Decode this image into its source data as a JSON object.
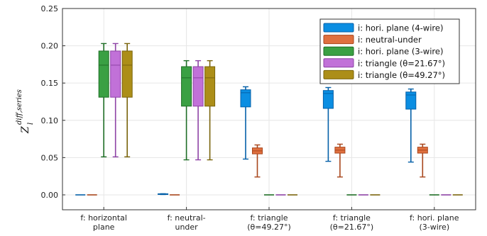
{
  "chart_data": {
    "type": "box",
    "ylabel": {
      "main": "Z",
      "sup": "diff,series",
      "sub": "l"
    },
    "ylim": [
      -0.02,
      0.25
    ],
    "yticks": [
      "0.00",
      "0.05",
      "0.10",
      "0.15",
      "0.20",
      "0.25"
    ],
    "grid": true,
    "legend_position": "top-right",
    "categories": [
      [
        "f: horizontal",
        "plane"
      ],
      [
        "f: neutral-",
        "under"
      ],
      [
        "f: triangle",
        "(θ=49.27°)"
      ],
      [
        "f: triangle",
        "(θ=21.67°)"
      ],
      [
        "f: hori. plane",
        "(3-wire)"
      ]
    ],
    "series": [
      {
        "name": "i: hori. plane (4-wire)",
        "color": "#0b8ee2",
        "stroke": "#0560a8",
        "boxes": [
          {
            "min": 0.0,
            "q1": 0.0,
            "median": 0.0,
            "q3": 0.0,
            "max": 0.0
          },
          {
            "min": 0.0005,
            "q1": 0.0005,
            "median": 0.001,
            "q3": 0.0015,
            "max": 0.0015
          },
          {
            "min": 0.048,
            "q1": 0.118,
            "median": 0.137,
            "q3": 0.141,
            "max": 0.145
          },
          {
            "min": 0.045,
            "q1": 0.116,
            "median": 0.136,
            "q3": 0.14,
            "max": 0.144
          },
          {
            "min": 0.044,
            "q1": 0.115,
            "median": 0.134,
            "q3": 0.138,
            "max": 0.142
          }
        ]
      },
      {
        "name": "i: neutral-under",
        "color": "#e0703f",
        "stroke": "#a8461c",
        "boxes": [
          {
            "min": 0.0,
            "q1": 0.0,
            "median": 0.0,
            "q3": 0.0,
            "max": 0.0
          },
          {
            "min": 0.0,
            "q1": 0.0,
            "median": 0.0,
            "q3": 0.0,
            "max": 0.0
          },
          {
            "min": 0.024,
            "q1": 0.055,
            "median": 0.059,
            "q3": 0.063,
            "max": 0.067
          },
          {
            "min": 0.024,
            "q1": 0.056,
            "median": 0.06,
            "q3": 0.064,
            "max": 0.068
          },
          {
            "min": 0.024,
            "q1": 0.056,
            "median": 0.06,
            "q3": 0.064,
            "max": 0.068
          }
        ]
      },
      {
        "name": "i: hori. plane (3-wire)",
        "color": "#3aa043",
        "stroke": "#1f6e26",
        "boxes": [
          {
            "min": 0.051,
            "q1": 0.131,
            "median": 0.174,
            "q3": 0.193,
            "max": 0.203
          },
          {
            "min": 0.047,
            "q1": 0.119,
            "median": 0.157,
            "q3": 0.172,
            "max": 0.18
          },
          {
            "min": 0.0,
            "q1": 0.0,
            "median": 0.0,
            "q3": 0.0,
            "max": 0.0
          },
          {
            "min": 0.0,
            "q1": 0.0,
            "median": 0.0,
            "q3": 0.0,
            "max": 0.0
          },
          {
            "min": 0.0,
            "q1": 0.0,
            "median": 0.0,
            "q3": 0.0,
            "max": 0.0
          }
        ]
      },
      {
        "name": "i: triangle (θ=21.67°)",
        "color": "#c171d8",
        "stroke": "#8e43a6",
        "boxes": [
          {
            "min": 0.051,
            "q1": 0.131,
            "median": 0.174,
            "q3": 0.193,
            "max": 0.203
          },
          {
            "min": 0.047,
            "q1": 0.119,
            "median": 0.157,
            "q3": 0.172,
            "max": 0.18
          },
          {
            "min": 0.0,
            "q1": 0.0,
            "median": 0.0,
            "q3": 0.0,
            "max": 0.0
          },
          {
            "min": 0.0,
            "q1": 0.0,
            "median": 0.0,
            "q3": 0.0,
            "max": 0.0
          },
          {
            "min": 0.0,
            "q1": 0.0,
            "median": 0.0,
            "q3": 0.0,
            "max": 0.0
          }
        ]
      },
      {
        "name": "i: triangle (θ=49.27°)",
        "color": "#ac8e18",
        "stroke": "#7a640c",
        "boxes": [
          {
            "min": 0.051,
            "q1": 0.131,
            "median": 0.174,
            "q3": 0.193,
            "max": 0.203
          },
          {
            "min": 0.047,
            "q1": 0.119,
            "median": 0.157,
            "q3": 0.172,
            "max": 0.18
          },
          {
            "min": 0.0,
            "q1": 0.0,
            "median": 0.0,
            "q3": 0.0,
            "max": 0.0
          },
          {
            "min": 0.0,
            "q1": 0.0,
            "median": 0.0,
            "q3": 0.0,
            "max": 0.0
          },
          {
            "min": 0.0,
            "q1": 0.0,
            "median": 0.0,
            "q3": 0.0,
            "max": 0.0
          }
        ]
      }
    ]
  }
}
